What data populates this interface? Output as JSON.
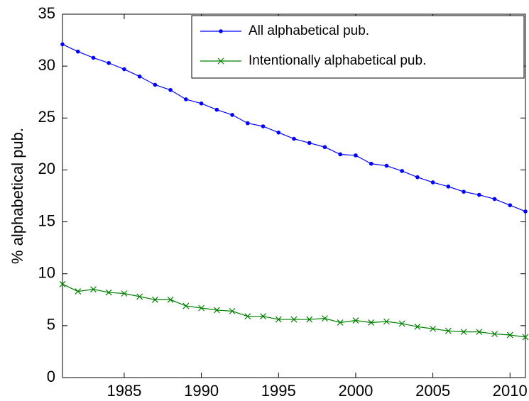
{
  "chart_data": {
    "type": "line",
    "y_label": "% alphabetical pub.",
    "x": [
      1981,
      1982,
      1983,
      1984,
      1985,
      1986,
      1987,
      1988,
      1989,
      1990,
      1991,
      1992,
      1993,
      1994,
      1995,
      1996,
      1997,
      1998,
      1999,
      2000,
      2001,
      2002,
      2003,
      2004,
      2005,
      2006,
      2007,
      2008,
      2009,
      2010,
      2011
    ],
    "series": [
      {
        "name": "All alphabetical pub.",
        "color": "#0000ff",
        "marker": "dot",
        "values": [
          32.1,
          31.4,
          30.8,
          30.3,
          29.7,
          29.0,
          28.2,
          27.7,
          26.8,
          26.4,
          25.8,
          25.3,
          24.5,
          24.2,
          23.6,
          23.0,
          22.6,
          22.2,
          21.5,
          21.4,
          20.6,
          20.4,
          19.9,
          19.3,
          18.8,
          18.4,
          17.9,
          17.6,
          17.2,
          16.6,
          16.0
        ]
      },
      {
        "name": "Intentionally alphabetical pub.",
        "color": "#008000",
        "marker": "x",
        "values": [
          9.0,
          8.3,
          8.5,
          8.2,
          8.1,
          7.8,
          7.5,
          7.5,
          6.9,
          6.7,
          6.5,
          6.4,
          5.9,
          5.9,
          5.6,
          5.6,
          5.6,
          5.7,
          5.3,
          5.5,
          5.3,
          5.4,
          5.2,
          4.9,
          4.7,
          4.5,
          4.4,
          4.4,
          4.2,
          4.1,
          3.9
        ]
      }
    ],
    "xlim": [
      1981,
      2011
    ],
    "xticks": [
      1985,
      1990,
      1995,
      2000,
      2005,
      2010
    ],
    "ylim": [
      0,
      35
    ],
    "yticks": [
      0,
      5,
      10,
      15,
      20,
      25,
      30,
      35
    ],
    "legend": "upper right",
    "grid": false
  }
}
